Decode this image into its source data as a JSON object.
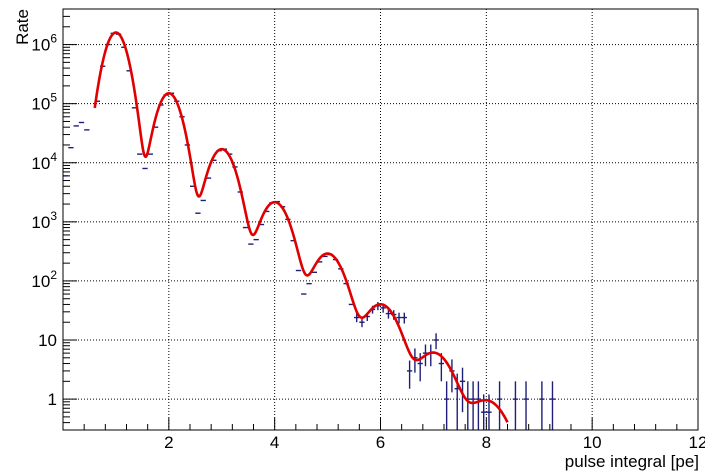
{
  "chart_data": {
    "type": "line",
    "xlabel": "pulse integral [pe]",
    "ylabel": "Rate",
    "xlim": [
      0,
      12
    ],
    "ylim": [
      0.3,
      4000000
    ],
    "yscale": "log",
    "grid": true,
    "x_ticks": [
      {
        "value": 2,
        "label": "2"
      },
      {
        "value": 4,
        "label": "4"
      },
      {
        "value": 6,
        "label": "6"
      },
      {
        "value": 8,
        "label": "8"
      },
      {
        "value": 10,
        "label": "10"
      },
      {
        "value": 12,
        "label": "12"
      }
    ],
    "y_ticks": [
      {
        "value": 1,
        "base": "1",
        "exp": ""
      },
      {
        "value": 10,
        "base": "10",
        "exp": ""
      },
      {
        "value": 100,
        "base": "10",
        "exp": "2"
      },
      {
        "value": 1000,
        "base": "10",
        "exp": "3"
      },
      {
        "value": 10000,
        "base": "10",
        "exp": "4"
      },
      {
        "value": 100000,
        "base": "10",
        "exp": "5"
      },
      {
        "value": 1000000,
        "base": "10",
        "exp": "6"
      }
    ],
    "series": [
      {
        "kind": "points-with-errors",
        "color": "#1f1f7a",
        "bin_width": 0.1,
        "points": [
          [
            0.05,
            6000,
            0
          ],
          [
            0.15,
            18000,
            0
          ],
          [
            0.25,
            42000,
            0
          ],
          [
            0.35,
            48000,
            0
          ],
          [
            0.45,
            36000,
            0
          ],
          [
            0.65,
            110000,
            0
          ],
          [
            0.75,
            430000,
            0
          ],
          [
            0.85,
            1000000,
            0
          ],
          [
            0.95,
            1550000,
            0
          ],
          [
            1.05,
            1500000,
            0
          ],
          [
            1.15,
            900000,
            0
          ],
          [
            1.25,
            360000,
            0
          ],
          [
            1.35,
            85000,
            0
          ],
          [
            1.45,
            14000,
            0
          ],
          [
            1.55,
            8000,
            0
          ],
          [
            1.65,
            14000,
            0
          ],
          [
            1.75,
            40000,
            0
          ],
          [
            1.85,
            95000,
            0
          ],
          [
            1.95,
            140000,
            0
          ],
          [
            2.05,
            150000,
            0
          ],
          [
            2.15,
            110000,
            0
          ],
          [
            2.25,
            60000,
            0
          ],
          [
            2.35,
            20000,
            0
          ],
          [
            2.45,
            4000,
            0
          ],
          [
            2.55,
            1400,
            0
          ],
          [
            2.65,
            2300,
            0
          ],
          [
            2.75,
            5500,
            0
          ],
          [
            2.85,
            11000,
            0
          ],
          [
            2.95,
            16000,
            0
          ],
          [
            3.05,
            17000,
            0
          ],
          [
            3.15,
            14000,
            0
          ],
          [
            3.25,
            8500,
            0
          ],
          [
            3.35,
            3200,
            0
          ],
          [
            3.45,
            800,
            0
          ],
          [
            3.55,
            420,
            0
          ],
          [
            3.65,
            500,
            0
          ],
          [
            3.75,
            900,
            0
          ],
          [
            3.85,
            1500,
            0
          ],
          [
            3.95,
            2100,
            0
          ],
          [
            4.05,
            2200,
            0
          ],
          [
            4.15,
            1800,
            0
          ],
          [
            4.25,
            1100,
            0
          ],
          [
            4.35,
            480,
            0
          ],
          [
            4.45,
            150,
            0
          ],
          [
            4.55,
            60,
            0
          ],
          [
            4.65,
            90,
            0
          ],
          [
            4.75,
            140,
            0
          ],
          [
            4.85,
            210,
            0
          ],
          [
            4.95,
            260,
            0
          ],
          [
            5.05,
            280,
            0
          ],
          [
            5.15,
            230,
            0
          ],
          [
            5.25,
            160,
            0
          ],
          [
            5.35,
            90,
            0
          ],
          [
            5.45,
            40,
            0
          ],
          [
            5.55,
            24,
            4
          ],
          [
            5.65,
            20,
            3.5
          ],
          [
            5.75,
            25,
            4
          ],
          [
            5.85,
            33,
            5
          ],
          [
            5.95,
            38,
            6
          ],
          [
            6.05,
            35,
            6
          ],
          [
            6.15,
            28,
            5
          ],
          [
            6.25,
            27,
            5
          ],
          [
            6.35,
            24,
            5
          ],
          [
            6.45,
            24,
            5
          ],
          [
            6.55,
            3,
            1.5
          ],
          [
            6.65,
            5,
            2.2
          ],
          [
            6.75,
            4,
            2
          ],
          [
            6.85,
            6,
            2.4
          ],
          [
            6.95,
            6,
            2.4
          ],
          [
            7.05,
            10,
            3
          ],
          [
            7.15,
            4,
            2
          ],
          [
            7.25,
            1,
            1
          ],
          [
            7.35,
            3,
            1.7
          ],
          [
            7.45,
            1.5,
            1.2
          ],
          [
            7.55,
            2,
            1.4
          ],
          [
            7.65,
            1,
            1
          ],
          [
            7.75,
            1,
            1
          ],
          [
            7.85,
            1,
            1
          ],
          [
            7.95,
            0.6,
            0.6
          ],
          [
            8.05,
            0.6,
            0.6
          ],
          [
            8.25,
            1,
            1
          ],
          [
            8.55,
            1,
            1
          ],
          [
            8.75,
            1,
            1
          ],
          [
            9.05,
            1,
            1
          ],
          [
            9.25,
            1,
            1
          ]
        ]
      },
      {
        "kind": "fit-curve",
        "color": "#e00000",
        "x_range": [
          0.6,
          8.4
        ],
        "model": {
          "peaks": [
            {
              "mu": 1.0,
              "sigma": 0.165,
              "amp": 1600000
            },
            {
              "mu": 2.0,
              "sigma": 0.18,
              "amp": 150000
            },
            {
              "mu": 3.0,
              "sigma": 0.2,
              "amp": 17000
            },
            {
              "mu": 4.0,
              "sigma": 0.22,
              "amp": 2150
            },
            {
              "mu": 5.0,
              "sigma": 0.24,
              "amp": 290
            },
            {
              "mu": 6.0,
              "sigma": 0.26,
              "amp": 40
            },
            {
              "mu": 7.0,
              "sigma": 0.28,
              "amp": 6
            },
            {
              "mu": 8.0,
              "sigma": 0.3,
              "amp": 0.9
            }
          ],
          "background": {
            "amp": 18,
            "decay": 0.8
          }
        }
      }
    ]
  }
}
